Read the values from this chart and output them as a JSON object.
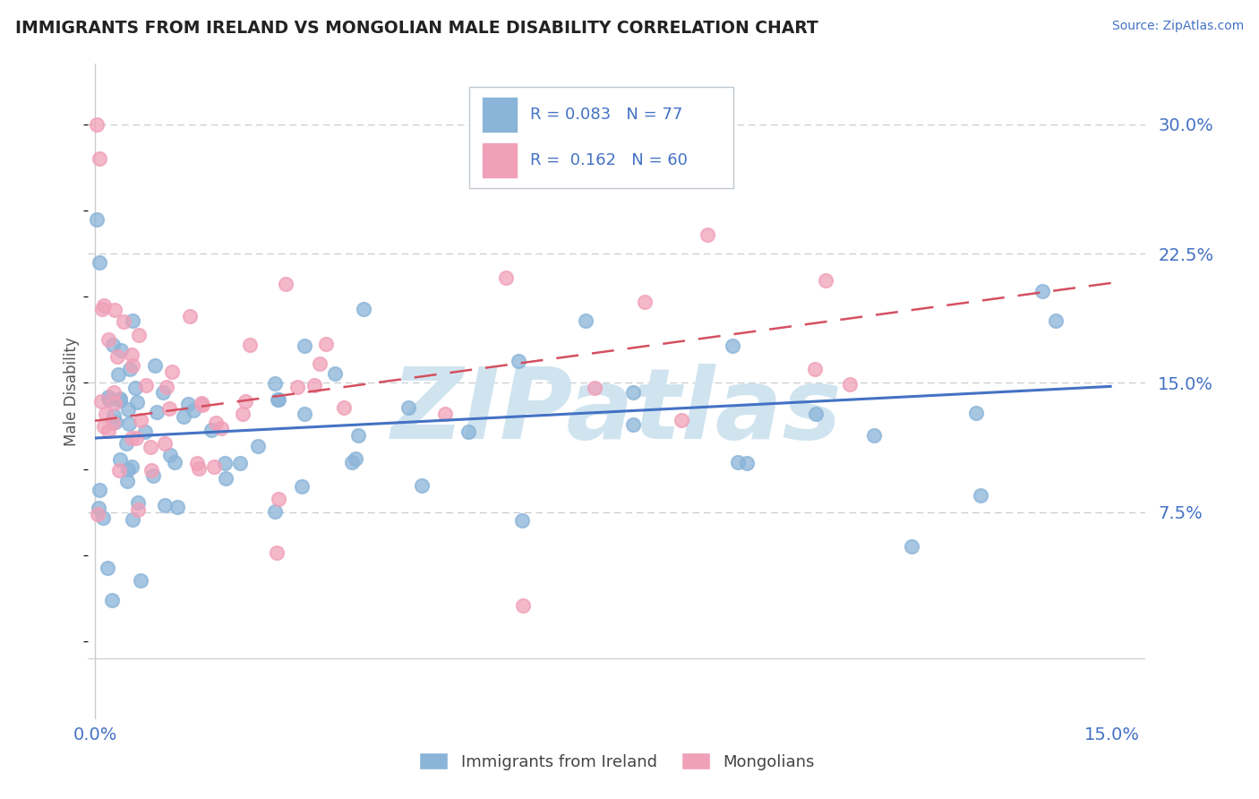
{
  "title": "IMMIGRANTS FROM IRELAND VS MONGOLIAN MALE DISABILITY CORRELATION CHART",
  "source": "Source: ZipAtlas.com",
  "ylabel": "Male Disability",
  "legend_label_1": "Immigrants from Ireland",
  "legend_label_2": "Mongolians",
  "R1": 0.083,
  "N1": 77,
  "R2": 0.162,
  "N2": 60,
  "xlim": [
    -0.001,
    0.155
  ],
  "ylim": [
    -0.045,
    0.335
  ],
  "yticks": [
    0.075,
    0.15,
    0.225,
    0.3
  ],
  "ytick_labels": [
    "7.5%",
    "15.0%",
    "22.5%",
    "30.0%"
  ],
  "xtick_labels": [
    "0.0%",
    "15.0%"
  ],
  "color1": "#8ab4d8",
  "color2": "#f0a0b8",
  "trendline1_color": "#4472c4",
  "trendline2_color": "#d45060",
  "watermark": "ZIPatlas",
  "watermark_color": "#d0e4f0",
  "background_color": "#ffffff",
  "grid_color": "#c8ccd0",
  "trendline1_y0": 0.118,
  "trendline1_y1": 0.148,
  "trendline2_y0": 0.128,
  "trendline2_y1": 0.208
}
